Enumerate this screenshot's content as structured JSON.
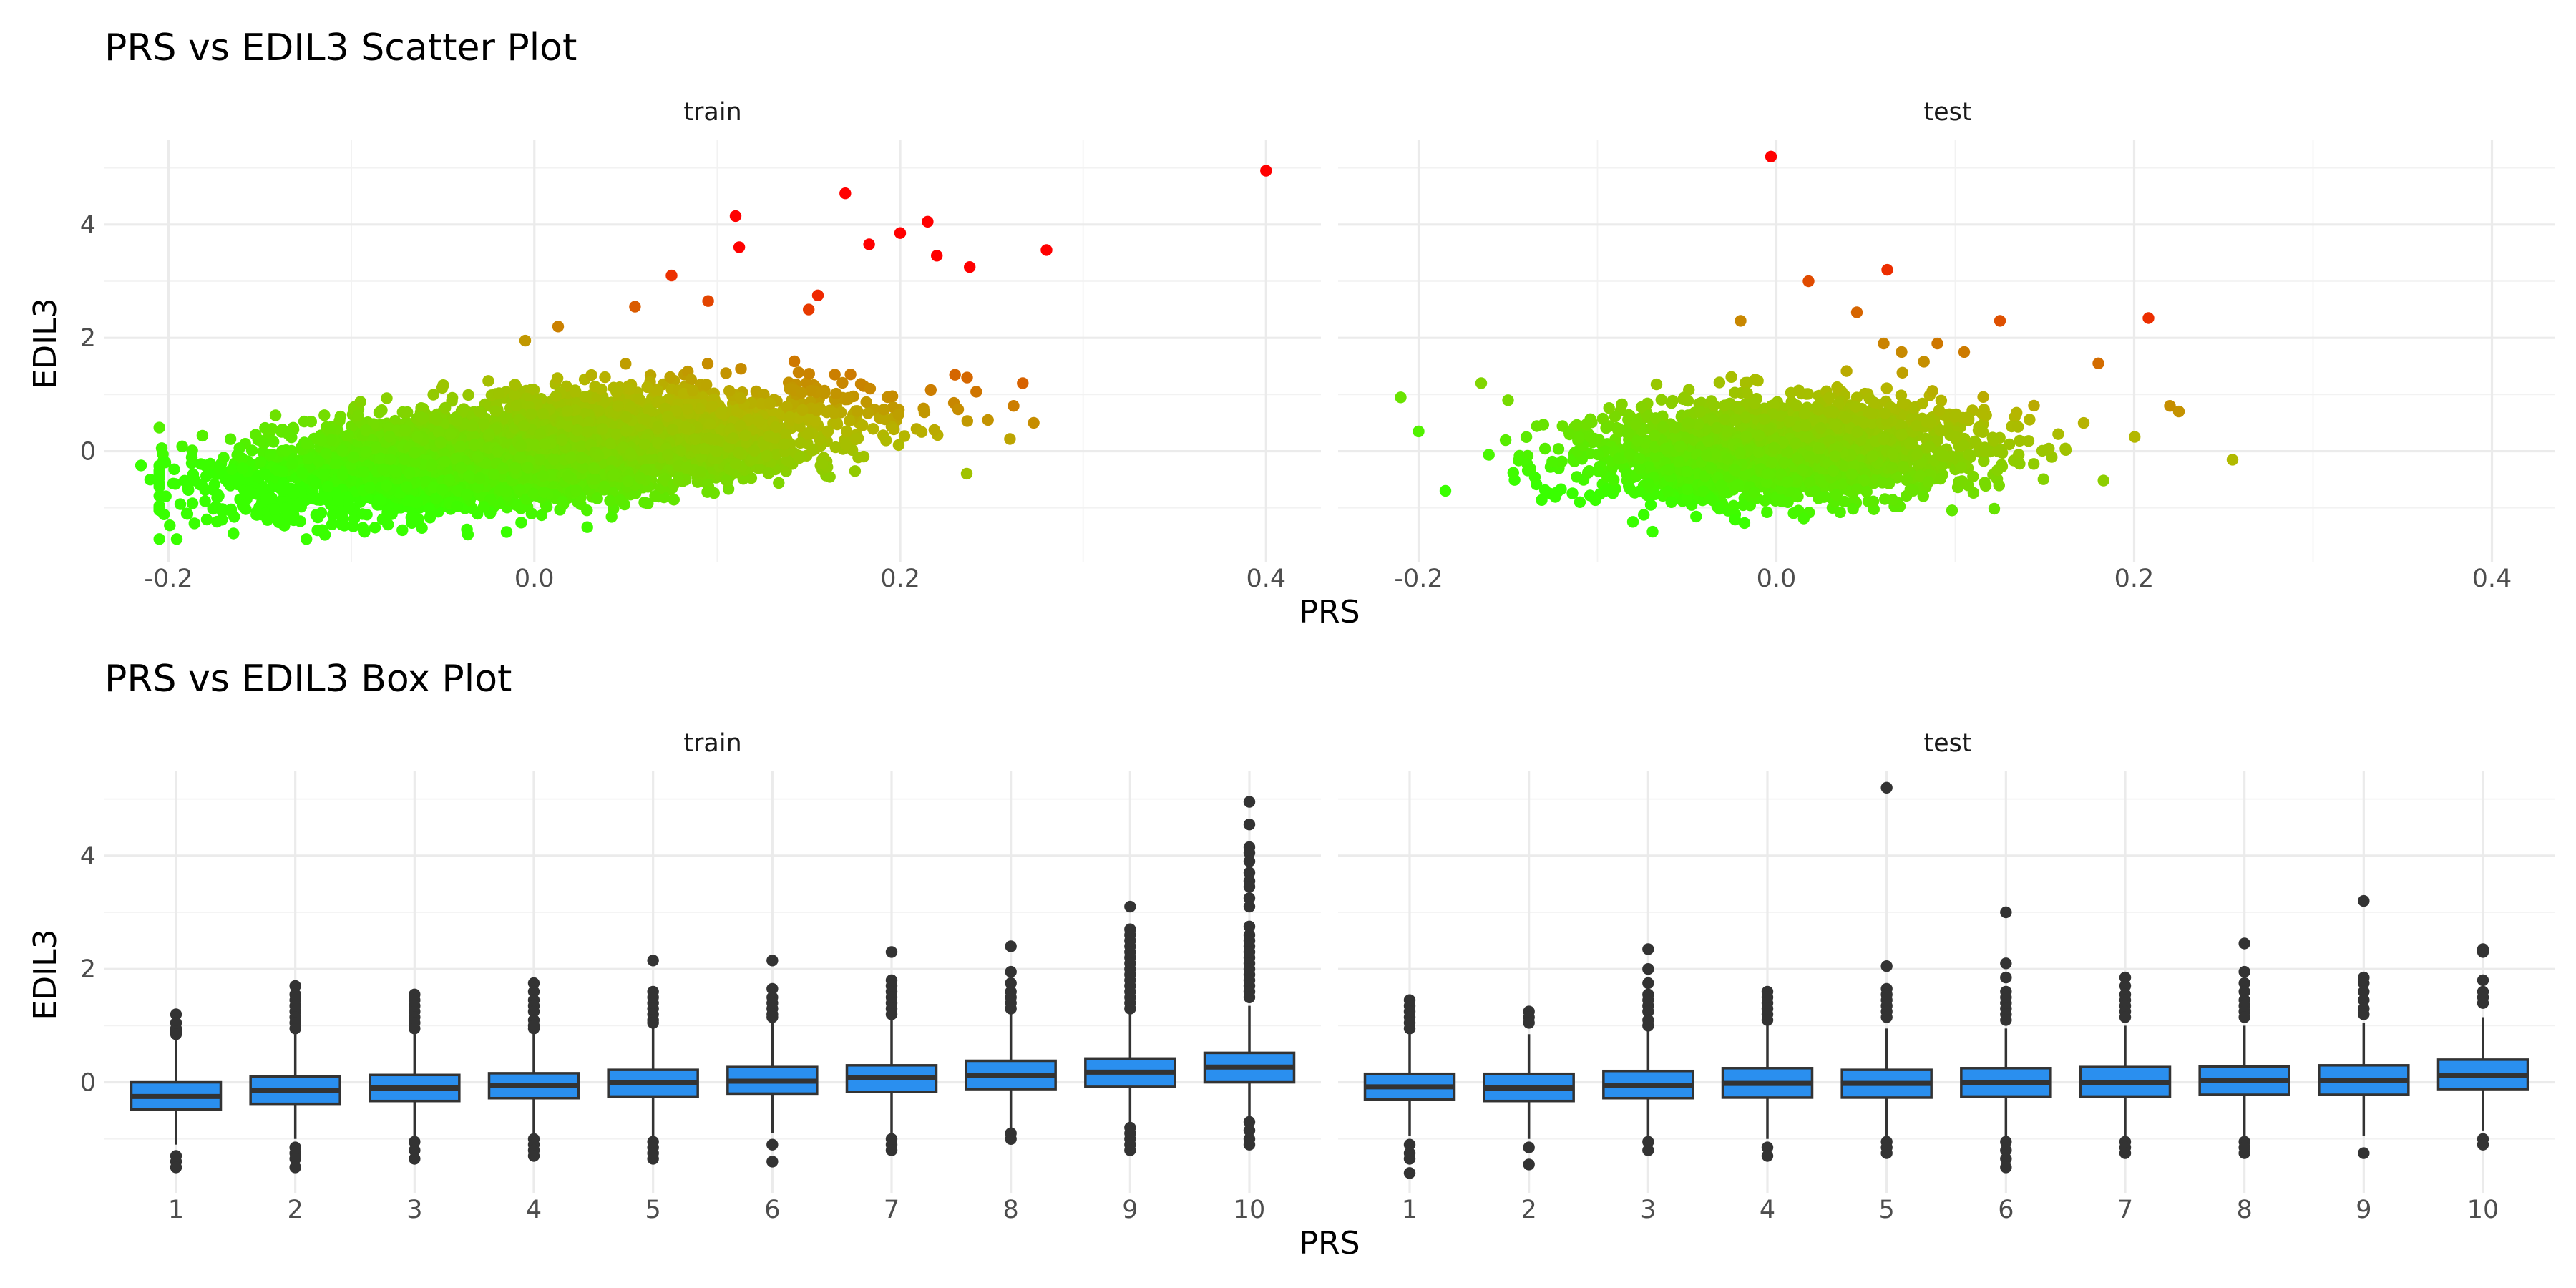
{
  "colors": {
    "gradient_low": "#39ff00",
    "gradient_mid": "#b5b600",
    "gradient_high": "#ff0000",
    "box_fill": "#2a8fef",
    "box_line": "#333333",
    "grid": "#ebebeb"
  },
  "chart_data": [
    {
      "type": "scatter",
      "title": "PRS vs EDIL3 Scatter Plot",
      "xlabel": "PRS",
      "ylabel": "EDIL3",
      "grid": true,
      "color_scale": "gradient green→orange→red mapped to PRS + EDIL3",
      "facets": [
        {
          "label": "train",
          "xlim": [
            -0.235,
            0.43
          ],
          "ylim": [
            -1.95,
            5.5
          ],
          "x_ticks": [
            -0.2,
            0.0,
            0.2,
            0.4
          ],
          "x_tick_labels": [
            "-0.2",
            "0.0",
            "0.2",
            "0.4"
          ],
          "y_ticks": [
            0,
            2,
            4
          ],
          "y_tick_labels": [
            "0",
            "2",
            "4"
          ],
          "cloud": {
            "n": 5200,
            "x_mean": 0.0,
            "x_sd": 0.075,
            "y_slope": 3.0,
            "y_noise": 0.42,
            "y_min": -1.55
          },
          "outliers": [
            {
              "x": -0.215,
              "y": -0.25
            },
            {
              "x": -0.21,
              "y": -0.5
            },
            {
              "x": -0.19,
              "y": -1.1
            },
            {
              "x": -0.18,
              "y": -0.25
            },
            {
              "x": 0.4,
              "y": 4.95
            },
            {
              "x": 0.28,
              "y": 3.55
            },
            {
              "x": 0.215,
              "y": 4.05
            },
            {
              "x": 0.2,
              "y": 3.85
            },
            {
              "x": 0.17,
              "y": 4.55
            },
            {
              "x": 0.11,
              "y": 4.15
            },
            {
              "x": 0.112,
              "y": 3.6
            },
            {
              "x": 0.183,
              "y": 3.65
            },
            {
              "x": 0.22,
              "y": 3.45
            },
            {
              "x": 0.238,
              "y": 3.25
            },
            {
              "x": 0.075,
              "y": 3.1
            },
            {
              "x": 0.248,
              "y": 0.55
            },
            {
              "x": 0.267,
              "y": 1.2
            },
            {
              "x": 0.273,
              "y": 0.5
            },
            {
              "x": 0.262,
              "y": 0.8
            },
            {
              "x": 0.23,
              "y": 1.35
            },
            {
              "x": 0.055,
              "y": 2.55
            },
            {
              "x": 0.095,
              "y": 2.65
            },
            {
              "x": 0.155,
              "y": 2.75
            },
            {
              "x": 0.013,
              "y": 2.2
            },
            {
              "x": -0.005,
              "y": 1.95
            },
            {
              "x": 0.15,
              "y": 2.5
            }
          ]
        },
        {
          "label": "test",
          "xlim": [
            -0.245,
            0.435
          ],
          "ylim": [
            -1.95,
            5.5
          ],
          "x_ticks": [
            -0.2,
            0.0,
            0.2,
            0.4
          ],
          "x_tick_labels": [
            "-0.2",
            "0.0",
            "0.2",
            "0.4"
          ],
          "y_ticks": [
            0,
            2,
            4
          ],
          "y_tick_labels": [
            "0",
            "2",
            "4"
          ],
          "cloud": {
            "n": 2300,
            "x_mean": 0.0,
            "x_sd": 0.055,
            "y_slope": 1.2,
            "y_noise": 0.42,
            "y_min": -1.6
          },
          "outliers": [
            {
              "x": -0.21,
              "y": 0.95
            },
            {
              "x": -0.2,
              "y": 0.35
            },
            {
              "x": -0.185,
              "y": -0.7
            },
            {
              "x": -0.165,
              "y": 1.2
            },
            {
              "x": -0.15,
              "y": 0.9
            },
            {
              "x": -0.003,
              "y": 5.2
            },
            {
              "x": 0.018,
              "y": 3.0
            },
            {
              "x": 0.062,
              "y": 3.2
            },
            {
              "x": 0.045,
              "y": 2.45
            },
            {
              "x": -0.02,
              "y": 2.3
            },
            {
              "x": 0.125,
              "y": 2.3
            },
            {
              "x": 0.208,
              "y": 2.35
            },
            {
              "x": 0.255,
              "y": -0.15
            },
            {
              "x": 0.22,
              "y": 0.8
            },
            {
              "x": 0.225,
              "y": 0.7
            },
            {
              "x": 0.18,
              "y": 1.55
            },
            {
              "x": 0.105,
              "y": 1.75
            },
            {
              "x": 0.06,
              "y": 1.9
            },
            {
              "x": 0.09,
              "y": 1.9
            },
            {
              "x": 0.07,
              "y": 1.75
            }
          ]
        }
      ]
    },
    {
      "type": "box",
      "title": "PRS vs EDIL3 Box Plot",
      "xlabel": "PRS",
      "ylabel": "EDIL3",
      "grid": true,
      "categories": [
        "1",
        "2",
        "3",
        "4",
        "5",
        "6",
        "7",
        "8",
        "9",
        "10"
      ],
      "facets": [
        {
          "label": "train",
          "ylim": [
            -1.95,
            5.5
          ],
          "y_ticks": [
            0,
            2,
            4
          ],
          "y_tick_labels": [
            "0",
            "2",
            "4"
          ],
          "boxes": [
            {
              "q1": -0.48,
              "median": -0.25,
              "q3": 0.0,
              "lower": -1.1,
              "upper": 0.75,
              "outliers": [
                1.2,
                1.05,
                0.95,
                0.9,
                0.85,
                -1.3,
                -1.4,
                -1.5
              ]
            },
            {
              "q1": -0.38,
              "median": -0.15,
              "q3": 0.1,
              "lower": -1.0,
              "upper": 0.85,
              "outliers": [
                1.7,
                1.55,
                1.45,
                1.35,
                1.25,
                1.15,
                1.05,
                0.95,
                -1.15,
                -1.25,
                -1.35,
                -1.5
              ]
            },
            {
              "q1": -0.33,
              "median": -0.1,
              "q3": 0.13,
              "lower": -0.95,
              "upper": 0.85,
              "outliers": [
                1.55,
                1.45,
                1.35,
                1.25,
                1.15,
                1.05,
                0.95,
                -1.05,
                -1.2,
                -1.35
              ]
            },
            {
              "q1": -0.28,
              "median": -0.05,
              "q3": 0.16,
              "lower": -0.9,
              "upper": 0.85,
              "outliers": [
                1.75,
                1.6,
                1.45,
                1.35,
                1.25,
                1.1,
                1.0,
                0.95,
                -1.0,
                -1.1,
                -1.2,
                -1.3
              ]
            },
            {
              "q1": -0.25,
              "median": 0.0,
              "q3": 0.22,
              "lower": -0.95,
              "upper": 0.95,
              "outliers": [
                2.15,
                1.6,
                1.5,
                1.4,
                1.3,
                1.2,
                1.1,
                1.05,
                -1.05,
                -1.15,
                -1.25,
                -1.35
              ]
            },
            {
              "q1": -0.2,
              "median": 0.02,
              "q3": 0.27,
              "lower": -0.9,
              "upper": 1.05,
              "outliers": [
                2.15,
                1.65,
                1.5,
                1.4,
                1.3,
                1.2,
                1.15,
                -1.1,
                -1.4
              ]
            },
            {
              "q1": -0.17,
              "median": 0.08,
              "q3": 0.3,
              "lower": -0.9,
              "upper": 1.1,
              "outliers": [
                2.3,
                1.8,
                1.7,
                1.6,
                1.5,
                1.4,
                1.3,
                1.2,
                -1.0,
                -1.1,
                -1.2
              ]
            },
            {
              "q1": -0.12,
              "median": 0.12,
              "q3": 0.38,
              "lower": -0.85,
              "upper": 1.2,
              "outliers": [
                2.4,
                1.95,
                1.75,
                1.6,
                1.5,
                1.4,
                1.3,
                -0.9,
                -1.0
              ]
            },
            {
              "q1": -0.08,
              "median": 0.18,
              "q3": 0.42,
              "lower": -0.75,
              "upper": 1.2,
              "outliers": [
                3.1,
                2.7,
                2.6,
                2.5,
                2.4,
                2.3,
                2.2,
                2.1,
                2.0,
                1.9,
                1.8,
                1.7,
                1.6,
                1.5,
                1.4,
                1.3,
                -0.8,
                -0.9,
                -1.0,
                -1.1,
                -1.2
              ]
            },
            {
              "q1": 0.0,
              "median": 0.27,
              "q3": 0.52,
              "lower": -0.6,
              "upper": 1.35,
              "outliers": [
                4.95,
                4.55,
                4.15,
                4.05,
                3.9,
                3.7,
                3.55,
                3.45,
                3.25,
                3.1,
                2.75,
                2.6,
                2.5,
                2.4,
                2.3,
                2.2,
                2.1,
                2.0,
                1.9,
                1.8,
                1.7,
                1.6,
                1.5,
                -0.7,
                -0.85,
                -1.0,
                -1.1
              ]
            }
          ]
        },
        {
          "label": "test",
          "ylim": [
            -1.95,
            5.5
          ],
          "y_ticks": [
            0,
            2,
            4
          ],
          "y_tick_labels": [
            "0",
            "2",
            "4"
          ],
          "boxes": [
            {
              "q1": -0.3,
              "median": -0.08,
              "q3": 0.15,
              "lower": -0.95,
              "upper": 0.85,
              "outliers": [
                1.45,
                1.35,
                1.25,
                1.15,
                1.05,
                0.95,
                -1.1,
                -1.25,
                -1.35,
                -1.6
              ]
            },
            {
              "q1": -0.33,
              "median": -0.1,
              "q3": 0.15,
              "lower": -1.0,
              "upper": 0.85,
              "outliers": [
                1.25,
                1.15,
                1.05,
                -1.15,
                -1.45
              ]
            },
            {
              "q1": -0.28,
              "median": -0.05,
              "q3": 0.2,
              "lower": -0.95,
              "upper": 0.9,
              "outliers": [
                2.35,
                2.0,
                1.75,
                1.55,
                1.45,
                1.35,
                1.25,
                1.1,
                1.0,
                -1.05,
                -1.2
              ]
            },
            {
              "q1": -0.27,
              "median": -0.02,
              "q3": 0.25,
              "lower": -1.0,
              "upper": 1.0,
              "outliers": [
                1.6,
                1.5,
                1.4,
                1.3,
                1.2,
                1.1,
                -1.15,
                -1.3
              ]
            },
            {
              "q1": -0.27,
              "median": -0.02,
              "q3": 0.22,
              "lower": -0.95,
              "upper": 0.95,
              "outliers": [
                5.2,
                2.05,
                1.65,
                1.55,
                1.45,
                1.35,
                1.25,
                1.15,
                -1.05,
                -1.15,
                -1.25
              ]
            },
            {
              "q1": -0.25,
              "median": 0.0,
              "q3": 0.25,
              "lower": -0.95,
              "upper": 0.95,
              "outliers": [
                3.0,
                2.1,
                1.85,
                1.6,
                1.5,
                1.4,
                1.3,
                1.2,
                1.1,
                -1.05,
                -1.2,
                -1.35,
                -1.5
              ]
            },
            {
              "q1": -0.25,
              "median": 0.0,
              "q3": 0.27,
              "lower": -0.95,
              "upper": 1.0,
              "outliers": [
                1.85,
                1.7,
                1.55,
                1.45,
                1.35,
                1.25,
                1.15,
                -1.05,
                -1.15,
                -1.25
              ]
            },
            {
              "q1": -0.22,
              "median": 0.03,
              "q3": 0.28,
              "lower": -0.95,
              "upper": 1.0,
              "outliers": [
                2.45,
                1.95,
                1.75,
                1.6,
                1.45,
                1.35,
                1.25,
                1.15,
                -1.05,
                -1.15,
                -1.25
              ]
            },
            {
              "q1": -0.22,
              "median": 0.03,
              "q3": 0.3,
              "lower": -0.95,
              "upper": 1.05,
              "outliers": [
                3.2,
                1.85,
                1.75,
                1.6,
                1.45,
                1.3,
                1.2,
                -1.25
              ]
            },
            {
              "q1": -0.12,
              "median": 0.12,
              "q3": 0.4,
              "lower": -0.85,
              "upper": 1.15,
              "outliers": [
                2.35,
                2.3,
                1.8,
                1.6,
                1.5,
                1.4,
                -1.0,
                -1.1
              ]
            }
          ]
        }
      ]
    }
  ]
}
